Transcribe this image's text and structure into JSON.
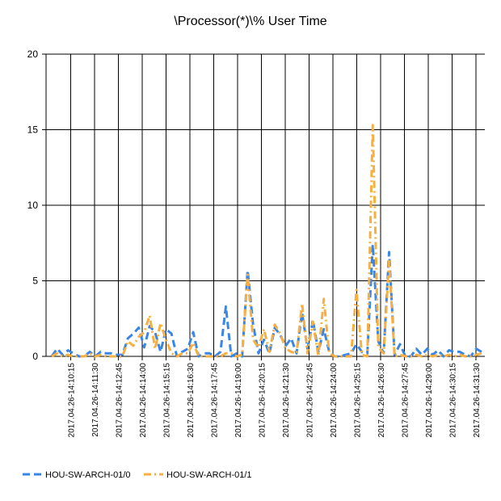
{
  "chart_data": {
    "type": "line",
    "title": "\\Processor(*)\\% User Time",
    "xlabel": "",
    "ylabel": "",
    "ylim": [
      0,
      20
    ],
    "yticks": [
      0,
      5,
      10,
      15,
      20
    ],
    "grid": true,
    "legend_position": "bottom-left",
    "x_tick_labels": [
      "2017.04.26-14:10:15",
      "2017.04.26-14:11:30",
      "2017.04.26-14:12:45",
      "2017.04.26-14:14:00",
      "2017.04.26-14:15:15",
      "2017.04.26-14:16:30",
      "2017.04.26-14:17:45",
      "2017.04.26-14:19:00",
      "2017.04.26-14:20:15",
      "2017.04.26-14:21:30",
      "2017.04.26-14:22:45",
      "2017.04.26-14:24:00",
      "2017.04.26-14:25:15",
      "2017.04.26-14:26:30",
      "2017.04.26-14:27:45",
      "2017.04.26-14:29:00",
      "2017.04.26-14:30:15",
      "2017.04.26-14:31:30"
    ],
    "series": [
      {
        "name": "HOU-SW-ARCH-01/0",
        "color": "#3b86e4",
        "dash": "dash",
        "values": [
          0,
          0.5,
          0.1,
          0.4,
          0.2,
          0,
          0,
          0.3,
          0,
          0.3,
          0.2,
          0.2,
          0.1,
          0.1,
          1.2,
          1.5,
          1.9,
          0.6,
          2.0,
          1.6,
          0.3,
          1.8,
          1.5,
          0,
          0.3,
          0.5,
          1.6,
          0,
          0.2,
          0.2,
          0,
          0.3,
          3.3,
          0,
          0.2,
          0,
          5.7,
          2.1,
          0.2,
          1.1,
          0.2,
          1.9,
          1.4,
          0.7,
          1.2,
          0.2,
          2.9,
          0.5,
          2.4,
          0.3,
          1.8,
          0.3,
          0,
          0,
          0.1,
          0.2,
          0.8,
          0.3,
          0.2,
          7.4,
          1.0,
          0.2,
          6.9,
          0.1,
          0.8,
          0,
          0,
          0.5,
          0.1,
          0.5,
          0.1,
          0.4,
          0,
          0.4,
          0.3,
          0.3,
          0.1,
          0,
          0.5,
          0.3
        ]
      },
      {
        "name": "HOU-SW-ARCH-01/1",
        "color": "#f6b042",
        "dash": "dashdot",
        "values": [
          0,
          0.2,
          0,
          0.1,
          0,
          0,
          0,
          0.2,
          0,
          0.1,
          0,
          0,
          0,
          0,
          1.0,
          0.7,
          1.3,
          1.6,
          2.7,
          0.5,
          2.2,
          1.1,
          0.2,
          0,
          0.2,
          0.2,
          0.9,
          0,
          0,
          0,
          0,
          0,
          0.2,
          0.2,
          0,
          0.1,
          5.4,
          1.1,
          0.6,
          1.8,
          0.3,
          2.1,
          1.5,
          0.5,
          0.3,
          0.2,
          3.5,
          0.2,
          2.3,
          0,
          3.8,
          0.2,
          0,
          0,
          0,
          0,
          4.4,
          0.1,
          0,
          15.3,
          0.6,
          0.2,
          6.3,
          0,
          0.1,
          0,
          0,
          0.1,
          0,
          0.1,
          0,
          0.1,
          0,
          0.1,
          0,
          0.1,
          0,
          0,
          0.1,
          0.2
        ]
      }
    ]
  }
}
